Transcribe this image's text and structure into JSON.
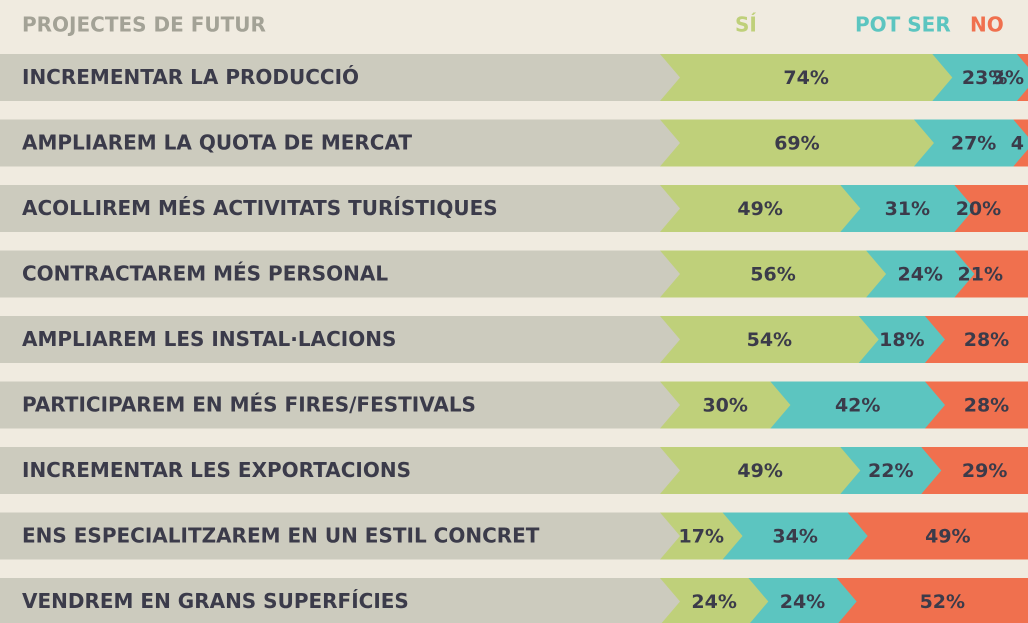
{
  "chart_data": {
    "type": "stacked_bar_horizontal",
    "title": "PROJECTES DE FUTUR",
    "categories": [
      "INCREMENTAR LA PRODUCCIÓ",
      "AMPLIAREM LA QUOTA DE MERCAT",
      "ACOLLIREM MÉS ACTIVITATS TURÍSTIQUES",
      "CONTRACTAREM MÉS PERSONAL",
      "AMPLIAREM LES INSTAL·LACIONS",
      "PARTICIPAREM EN MÉS FIRES/FESTIVALS",
      "INCREMENTAR LES EXPORTACIONS",
      "ENS ESPECIALITZAREM EN UN ESTIL CONCRET",
      "VENDREM EN GRANS SUPERFÍCIES"
    ],
    "series": [
      {
        "name": "SÍ",
        "color": "#bfd07a",
        "values": [
          74,
          69,
          49,
          56,
          54,
          30,
          49,
          17,
          24
        ],
        "value_labels": [
          "74%",
          "69%",
          "49%",
          "56%",
          "54%",
          "30%",
          "49%",
          "17%",
          "24%"
        ]
      },
      {
        "name": "POT SER",
        "color": "#5cc5c0",
        "values": [
          23,
          27,
          31,
          24,
          18,
          42,
          22,
          34,
          24
        ],
        "value_labels": [
          "23%",
          "27%",
          "31%",
          "24%",
          "18%",
          "42%",
          "22%",
          "34%",
          "24%"
        ]
      },
      {
        "name": "NO",
        "color": "#f0704e",
        "values": [
          3,
          4,
          20,
          21,
          28,
          28,
          29,
          49,
          52
        ],
        "value_labels": [
          "3%",
          "4",
          "20%",
          "21%",
          "28%",
          "28%",
          "29%",
          "49%",
          "52%"
        ]
      }
    ],
    "xlim": [
      0,
      100
    ],
    "label_color": "#cccbbe"
  }
}
